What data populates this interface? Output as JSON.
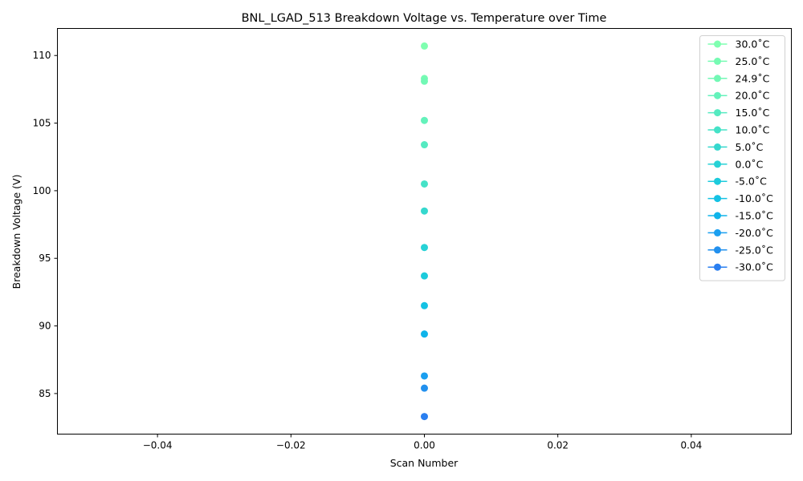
{
  "chart_data": {
    "type": "scatter",
    "title": "BNL_LGAD_513 Breakdown Voltage vs. Temperature over Time",
    "xlabel": "Scan Number",
    "ylabel": "Breakdown Voltage (V)",
    "xlim": [
      -0.055,
      0.055
    ],
    "ylim": [
      82.0,
      112.0
    ],
    "xticks": [
      -0.04,
      -0.02,
      0.0,
      0.02,
      0.04
    ],
    "xtick_labels": [
      "−0.04",
      "−0.02",
      "0.00",
      "0.02",
      "0.04"
    ],
    "yticks": [
      85,
      90,
      95,
      100,
      105,
      110
    ],
    "ytick_labels": [
      "85",
      "90",
      "95",
      "100",
      "105",
      "110"
    ],
    "grid": false,
    "legend_position": "top-right",
    "series": [
      {
        "name": "30.0$^\\circ$C",
        "label": "30.0˚C",
        "color": "#7fffb0",
        "x": [
          0
        ],
        "y": [
          110.7
        ]
      },
      {
        "name": "25.0$^\\circ$C",
        "label": "25.0˚C",
        "color": "#76fbb3",
        "x": [
          0
        ],
        "y": [
          108.3
        ]
      },
      {
        "name": "24.9$^\\circ$C",
        "label": "24.9˚C",
        "color": "#72f8b5",
        "x": [
          0
        ],
        "y": [
          108.1
        ]
      },
      {
        "name": "20.0$^\\circ$C",
        "label": "20.0˚C",
        "color": "#64f2bb",
        "x": [
          0
        ],
        "y": [
          105.2
        ]
      },
      {
        "name": "15.0$^\\circ$C",
        "label": "15.0˚C",
        "color": "#55eac1",
        "x": [
          0
        ],
        "y": [
          103.4
        ]
      },
      {
        "name": "10.0$^\\circ$C",
        "label": "10.0˚C",
        "color": "#45e2c7",
        "x": [
          0
        ],
        "y": [
          100.5
        ]
      },
      {
        "name": "5.0$^\\circ$C",
        "label": "5.0˚C",
        "color": "#35d8ce",
        "x": [
          0
        ],
        "y": [
          98.5
        ]
      },
      {
        "name": "0.0$^\\circ$C",
        "label": "0.0˚C",
        "color": "#27d2d6",
        "x": [
          0
        ],
        "y": [
          95.8
        ]
      },
      {
        "name": "-5.0$^\\circ$C",
        "label": "-5.0˚C",
        "color": "#1ccbdc",
        "x": [
          0
        ],
        "y": [
          93.7
        ]
      },
      {
        "name": "-10.0$^\\circ$C",
        "label": "-10.0˚C",
        "color": "#14c2e4",
        "x": [
          0
        ],
        "y": [
          91.5
        ]
      },
      {
        "name": "-15.0$^\\circ$C",
        "label": "-15.0˚C",
        "color": "#0fb4ea",
        "x": [
          0
        ],
        "y": [
          89.4
        ]
      },
      {
        "name": "-20.0$^\\circ$C",
        "label": "-20.0˚C",
        "color": "#1a9ff0",
        "x": [
          0
        ],
        "y": [
          86.3
        ]
      },
      {
        "name": "-25.0$^\\circ$C",
        "label": "-25.0˚C",
        "color": "#2290ee",
        "x": [
          0
        ],
        "y": [
          85.4
        ]
      },
      {
        "name": "-30.0$^\\circ$C",
        "label": "-30.0˚C",
        "color": "#2a7ff0",
        "x": [
          0
        ],
        "y": [
          83.3
        ]
      }
    ]
  }
}
